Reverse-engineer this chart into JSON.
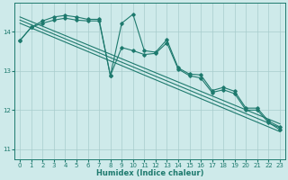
{
  "xlabel": "Humidex (Indice chaleur)",
  "bg_color": "#ceeaea",
  "line_color": "#1e7a6e",
  "grid_color": "#a8cccc",
  "xlim": [
    -0.5,
    23.5
  ],
  "ylim": [
    10.75,
    14.75
  ],
  "yticks": [
    11,
    12,
    13,
    14
  ],
  "xticks": [
    0,
    1,
    2,
    3,
    4,
    5,
    6,
    7,
    8,
    9,
    10,
    11,
    12,
    13,
    14,
    15,
    16,
    17,
    18,
    19,
    20,
    21,
    22,
    23
  ],
  "series1_x": [
    0,
    1,
    2,
    3,
    4,
    5,
    6,
    7,
    8,
    9,
    10,
    11,
    12,
    13,
    14,
    15,
    16,
    17,
    18,
    19,
    20,
    21,
    22,
    23
  ],
  "series1_y": [
    13.78,
    14.12,
    14.28,
    14.38,
    14.42,
    14.38,
    14.32,
    14.32,
    12.88,
    14.22,
    14.45,
    13.52,
    13.48,
    13.8,
    13.08,
    12.92,
    12.9,
    12.5,
    12.58,
    12.48,
    12.05,
    12.05,
    11.72,
    11.57
  ],
  "series2_x": [
    0,
    1,
    2,
    3,
    4,
    5,
    6,
    7,
    8,
    9,
    10,
    11,
    12,
    13,
    14,
    15,
    16,
    17,
    18,
    19,
    20,
    21,
    22,
    23
  ],
  "series2_y": [
    13.78,
    14.12,
    14.22,
    14.3,
    14.35,
    14.3,
    14.28,
    14.28,
    12.88,
    13.6,
    13.52,
    13.42,
    13.45,
    13.72,
    13.05,
    12.88,
    12.82,
    12.45,
    12.52,
    12.42,
    12.0,
    12.0,
    11.68,
    11.5
  ],
  "trend1_x": [
    0,
    23
  ],
  "trend1_y": [
    14.38,
    11.65
  ],
  "trend2_x": [
    0,
    23
  ],
  "trend2_y": [
    14.3,
    11.55
  ],
  "trend3_x": [
    0,
    23
  ],
  "trend3_y": [
    14.22,
    11.45
  ]
}
